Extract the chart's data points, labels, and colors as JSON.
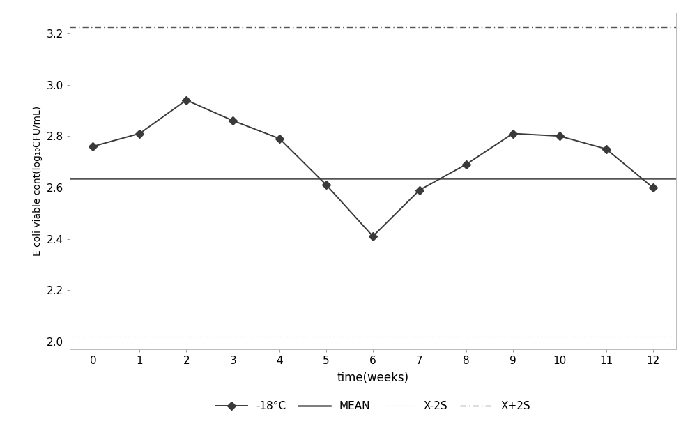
{
  "x": [
    0,
    1,
    2,
    3,
    4,
    5,
    6,
    7,
    8,
    9,
    10,
    11,
    12
  ],
  "y_18c": [
    2.76,
    2.81,
    2.94,
    2.86,
    2.79,
    2.61,
    2.41,
    2.59,
    2.69,
    2.81,
    2.8,
    2.75,
    2.6
  ],
  "mean": 2.635,
  "x_minus_2s": 2.02,
  "x_plus_2s": 3.225,
  "xlabel": "time(weeks)",
  "ylabel": "E coli viable cont(log₁₀CFU/mL)",
  "xlim": [
    -0.5,
    12.5
  ],
  "ylim": [
    1.97,
    3.28
  ],
  "yticks": [
    2.0,
    2.2,
    2.4,
    2.6,
    2.8,
    3.0,
    3.2
  ],
  "xticks": [
    0,
    1,
    2,
    3,
    4,
    5,
    6,
    7,
    8,
    9,
    10,
    11,
    12
  ],
  "line_color": "#3a3a3a",
  "marker": "D",
  "marker_size": 6,
  "marker_facecolor": "#3a3a3a",
  "mean_color": "#555555",
  "x_minus_2s_color": "#999999",
  "x_plus_2s_color": "#555555",
  "legend_18c": "-18°C",
  "legend_mean": "MEAN",
  "legend_xminus2s": "X-2S",
  "legend_xplus2s": "X+2S",
  "fig_width": 10.0,
  "fig_height": 6.11,
  "dpi": 100
}
